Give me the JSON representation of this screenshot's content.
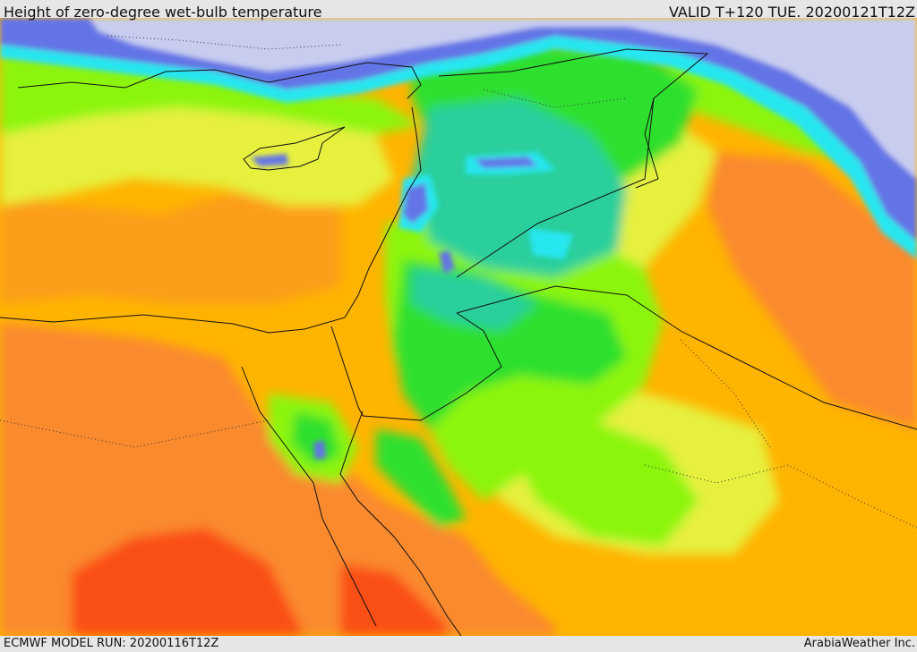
{
  "header": {
    "title": "Height of zero-degree wet-bulb temperature",
    "valid_time": "VALID T+120 TUE. 20200121T12Z"
  },
  "footer": {
    "model_run": "ECMWF MODEL RUN: 20200116T12Z",
    "credit": "ArabiaWeather Inc."
  },
  "map": {
    "region": "Eastern Mediterranean / Levant",
    "colors": {
      "very_low": "#c8cdf0",
      "low": "#6474e6",
      "cyan": "#28e6f0",
      "teal": "#2ccf9c",
      "green": "#2fe02f",
      "lime": "#8cf50f",
      "yellow": "#e6f03c",
      "orange_light": "#ffb400",
      "orange": "#fa8a2d",
      "red_orange": "#fa5014",
      "border": "#111111"
    }
  }
}
